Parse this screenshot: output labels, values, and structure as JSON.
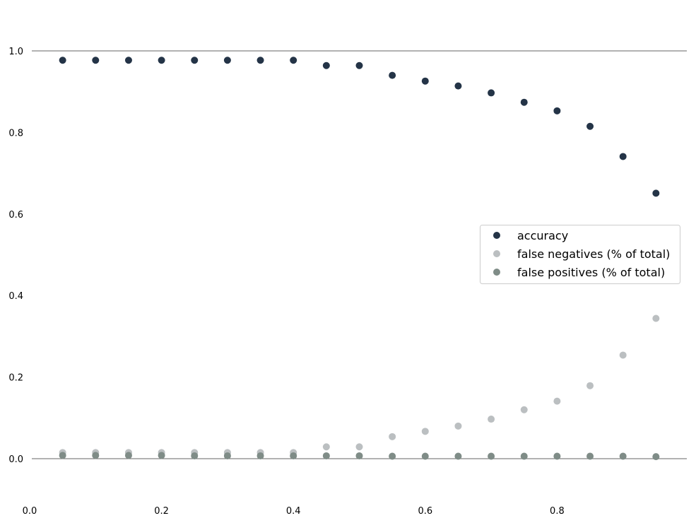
{
  "chart_data": {
    "type": "scatter",
    "title": "",
    "xlabel": "",
    "ylabel": "",
    "xlim": [
      0.0,
      1.0
    ],
    "ylim": [
      -0.1,
      1.1
    ],
    "grid": false,
    "reference_lines_y": [
      0.0,
      1.0
    ],
    "legend_position": "center-right",
    "x_ticks": [
      "0.0",
      "0.2",
      "0.4",
      "0.6",
      "0.8"
    ],
    "y_ticks": [
      "0.0",
      "0.2",
      "0.4",
      "0.6",
      "0.8",
      "1.0"
    ],
    "x": [
      0.05,
      0.1,
      0.15,
      0.2,
      0.25,
      0.3,
      0.35,
      0.4,
      0.45,
      0.5,
      0.55,
      0.6,
      0.65,
      0.7,
      0.75,
      0.8,
      0.85,
      0.9,
      0.95
    ],
    "series": [
      {
        "name": "accuracy",
        "color": "#243447",
        "values": [
          0.977,
          0.977,
          0.977,
          0.977,
          0.977,
          0.977,
          0.977,
          0.977,
          0.964,
          0.964,
          0.94,
          0.926,
          0.914,
          0.897,
          0.874,
          0.853,
          0.815,
          0.741,
          0.651
        ]
      },
      {
        "name": "false negatives (% of total)",
        "color": "#bbbfc1",
        "values": [
          0.015,
          0.015,
          0.015,
          0.015,
          0.015,
          0.015,
          0.015,
          0.015,
          0.029,
          0.029,
          0.054,
          0.067,
          0.08,
          0.097,
          0.12,
          0.141,
          0.179,
          0.254,
          0.344
        ]
      },
      {
        "name": "false positives (% of total)",
        "color": "#7f8c87",
        "values": [
          0.008,
          0.008,
          0.008,
          0.008,
          0.007,
          0.007,
          0.007,
          0.007,
          0.007,
          0.007,
          0.006,
          0.006,
          0.006,
          0.006,
          0.006,
          0.006,
          0.006,
          0.006,
          0.005
        ]
      }
    ]
  }
}
